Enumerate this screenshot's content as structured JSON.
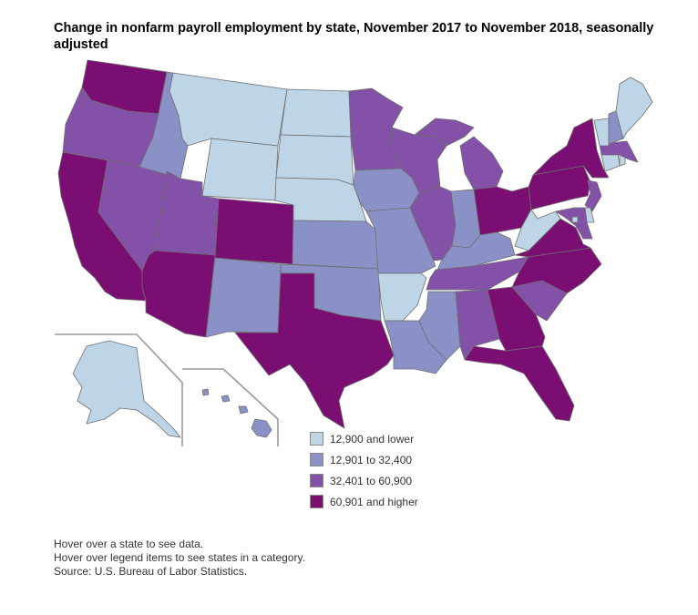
{
  "title": "Change in nonfarm payroll employment by state, November 2017 to November 2018, seasonally adjusted",
  "colors": {
    "low": "#bdd5e7",
    "midlow": "#8a91c6",
    "midhigh": "#8351a7",
    "high": "#7a0e73",
    "outline": "#6f6f6f"
  },
  "legend": [
    {
      "label": "12,900 and lower",
      "color": "#bdd5e7"
    },
    {
      "label": "12,901 to 32,400",
      "color": "#8a91c6"
    },
    {
      "label": "32,401 to 60,900",
      "color": "#8351a7"
    },
    {
      "label": "60,901 and higher",
      "color": "#7a0e73"
    }
  ],
  "notes": [
    "Hover over a state to see data.",
    "Hover over legend items to see states in a category.",
    "Source: U.S. Bureau of Labor Statistics."
  ],
  "state_categories": {
    "WA": 4,
    "OR": 3,
    "CA": 4,
    "NV": 3,
    "ID": 2,
    "MT": 1,
    "WY": 1,
    "UT": 3,
    "AZ": 4,
    "CO": 4,
    "NM": 2,
    "ND": 1,
    "SD": 1,
    "NE": 1,
    "KS": 2,
    "OK": 2,
    "TX": 4,
    "MN": 3,
    "IA": 2,
    "MO": 2,
    "AR": 1,
    "LA": 2,
    "WI": 3,
    "IL": 3,
    "MI": 3,
    "IN": 2,
    "OH": 4,
    "KY": 2,
    "TN": 3,
    "MS": 2,
    "AL": 3,
    "GA": 4,
    "FL": 4,
    "SC": 3,
    "NC": 4,
    "VA": 4,
    "WV": 1,
    "PA": 4,
    "NY": 4,
    "ME": 1,
    "NH": 2,
    "VT": 1,
    "MA": 3,
    "RI": 1,
    "CT": 1,
    "NJ": 3,
    "DE": 1,
    "MD": 3,
    "DC": 1,
    "AK": 1,
    "HI": 2
  }
}
